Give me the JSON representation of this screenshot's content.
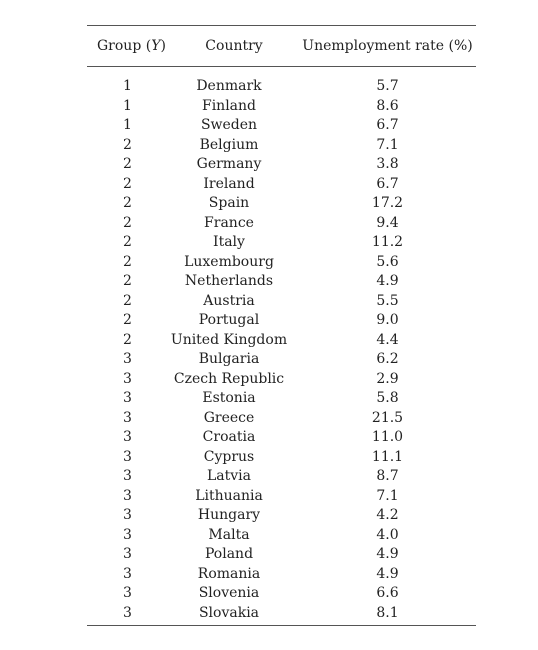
{
  "table": {
    "headers": {
      "group": "Group (Y)",
      "group_prefix": "Group (",
      "group_var": "Y",
      "group_suffix": ")",
      "country": "Country",
      "rate": "Unemployment rate (%)"
    },
    "rows": [
      {
        "group": "1",
        "country": "Denmark",
        "rate": "5.7"
      },
      {
        "group": "1",
        "country": "Finland",
        "rate": "8.6"
      },
      {
        "group": "1",
        "country": "Sweden",
        "rate": "6.7"
      },
      {
        "group": "2",
        "country": "Belgium",
        "rate": "7.1"
      },
      {
        "group": "2",
        "country": "Germany",
        "rate": "3.8"
      },
      {
        "group": "2",
        "country": "Ireland",
        "rate": "6.7"
      },
      {
        "group": "2",
        "country": "Spain",
        "rate": "17.2"
      },
      {
        "group": "2",
        "country": "France",
        "rate": "9.4"
      },
      {
        "group": "2",
        "country": "Italy",
        "rate": "11.2"
      },
      {
        "group": "2",
        "country": "Luxembourg",
        "rate": "5.6"
      },
      {
        "group": "2",
        "country": "Netherlands",
        "rate": "4.9"
      },
      {
        "group": "2",
        "country": "Austria",
        "rate": "5.5"
      },
      {
        "group": "2",
        "country": "Portugal",
        "rate": "9.0"
      },
      {
        "group": "2",
        "country": "United Kingdom",
        "rate": "4.4"
      },
      {
        "group": "3",
        "country": "Bulgaria",
        "rate": "6.2"
      },
      {
        "group": "3",
        "country": "Czech Republic",
        "rate": "2.9"
      },
      {
        "group": "3",
        "country": "Estonia",
        "rate": "5.8"
      },
      {
        "group": "3",
        "country": "Greece",
        "rate": "21.5"
      },
      {
        "group": "3",
        "country": "Croatia",
        "rate": "11.0"
      },
      {
        "group": "3",
        "country": "Cyprus",
        "rate": "11.1"
      },
      {
        "group": "3",
        "country": "Latvia",
        "rate": "8.7"
      },
      {
        "group": "3",
        "country": "Lithuania",
        "rate": "7.1"
      },
      {
        "group": "3",
        "country": "Hungary",
        "rate": "4.2"
      },
      {
        "group": "3",
        "country": "Malta",
        "rate": "4.0"
      },
      {
        "group": "3",
        "country": "Poland",
        "rate": "4.9"
      },
      {
        "group": "3",
        "country": "Romania",
        "rate": "4.9"
      },
      {
        "group": "3",
        "country": "Slovenia",
        "rate": "6.6"
      },
      {
        "group": "3",
        "country": "Slovakia",
        "rate": "8.1"
      }
    ]
  }
}
